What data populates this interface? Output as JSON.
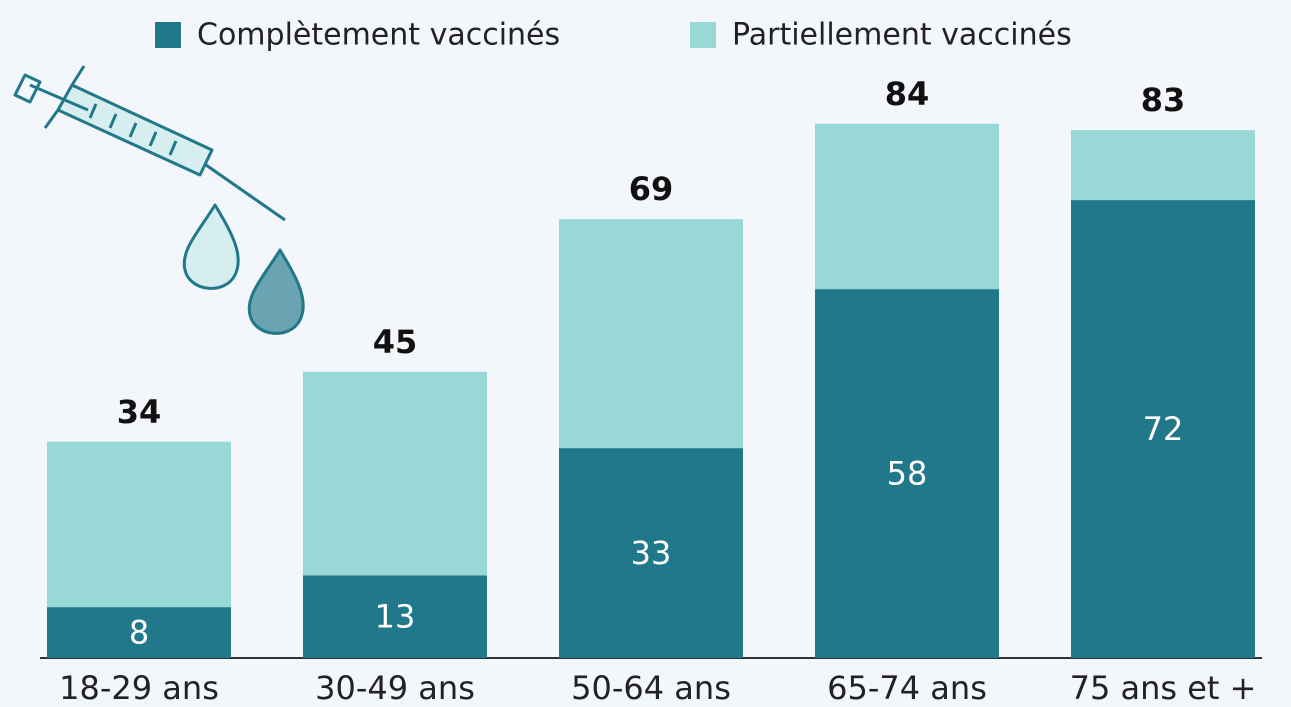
{
  "chart_data": {
    "type": "stacked-bar",
    "categories": [
      "18-29 ans",
      "30-49 ans",
      "50-64 ans",
      "65-74 ans",
      "75 ans et +"
    ],
    "series": [
      {
        "name": "Complètement vaccinés",
        "color": "#21788a",
        "values": [
          8,
          13,
          33,
          58,
          72
        ]
      },
      {
        "name": "Partiellement vaccinés",
        "color": "#98d8d6",
        "values": [
          26,
          32,
          36,
          26,
          11
        ]
      }
    ],
    "totals": [
      34,
      45,
      69,
      84,
      83
    ],
    "ylim": [
      0,
      100
    ]
  }
}
